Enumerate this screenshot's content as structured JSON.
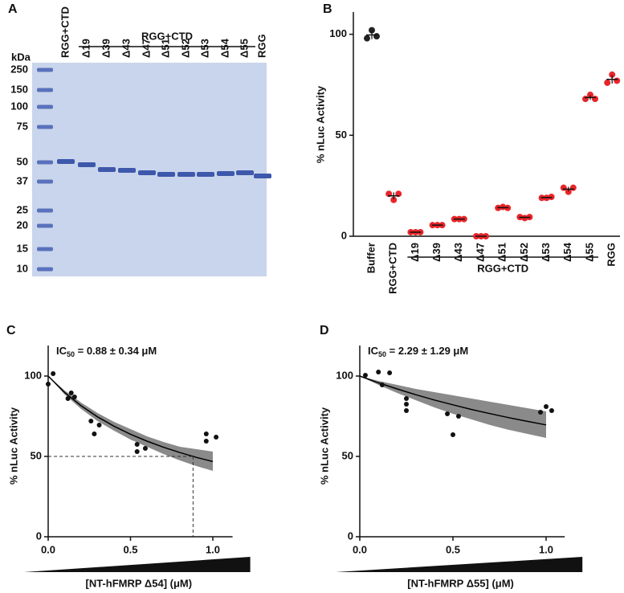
{
  "gel": {
    "panel_label": "A",
    "unit": "kDa",
    "markers": [
      250,
      150,
      100,
      75,
      50,
      37,
      25,
      20,
      15,
      10
    ],
    "lanes": [
      "RGG+CTD",
      "Δ19",
      "Δ39",
      "Δ43",
      "Δ47",
      "Δ51",
      "Δ52",
      "Δ53",
      "Δ54",
      "Δ55",
      "RGG"
    ],
    "group_label": "RGG+CTD"
  },
  "chart_data": [
    {
      "type": "strip",
      "panel_label": "B",
      "ylabel": "% nLuc Activity",
      "categories": [
        "Buffer",
        "RGG+CTD",
        "Δ19",
        "Δ39",
        "Δ43",
        "Δ47",
        "Δ51",
        "Δ52",
        "Δ53",
        "Δ54",
        "Δ55",
        "RGG"
      ],
      "values": [
        [
          98,
          102,
          99
        ],
        [
          21,
          18,
          21
        ],
        [
          2,
          2,
          2
        ],
        [
          5.5,
          5.5,
          5.5
        ],
        [
          8.5,
          8.5,
          8.5
        ],
        [
          0,
          0,
          0
        ],
        [
          14,
          14.5,
          14
        ],
        [
          9.5,
          9,
          9.5
        ],
        [
          19,
          19,
          19.5
        ],
        [
          24,
          22,
          24
        ],
        [
          68,
          70,
          68
        ],
        [
          76,
          80,
          77
        ]
      ],
      "colors": [
        "#222222",
        "#e8262a",
        "#e8262a",
        "#e8262a",
        "#e8262a",
        "#e8262a",
        "#e8262a",
        "#e8262a",
        "#e8262a",
        "#e8262a",
        "#e8262a",
        "#e8262a"
      ],
      "group_label": "RGG+CTD",
      "ylim": [
        0,
        111
      ],
      "yticks": [
        0,
        50,
        100
      ]
    },
    {
      "type": "scatter",
      "panel_label": "C",
      "annotation": {
        "prefix": "IC",
        "subscript": "50",
        "text": " = 0.88 ± 0.34 μM"
      },
      "ylabel": "% nLuc Activity",
      "xlabel": "[NT-hFMRP Δ54] (μM)",
      "xlim": [
        0,
        1.12
      ],
      "ylim": [
        0,
        119
      ],
      "xticks": [
        {
          "value": 0,
          "label": "0.0"
        },
        {
          "value": 0.5,
          "label": "0.5"
        },
        {
          "value": 1,
          "label": "1.0"
        }
      ],
      "yticks": [
        0,
        50,
        100
      ],
      "x": [
        0,
        0.03,
        0.12,
        0.14,
        0.16,
        0.26,
        0.28,
        0.31,
        0.54,
        0.54,
        0.59,
        0.96,
        0.96,
        1.02
      ],
      "y": [
        95,
        101.5,
        86,
        89.5,
        87,
        72,
        64,
        69.5,
        57.5,
        53,
        55,
        64,
        59.5,
        62
      ],
      "fit": {
        "x": [
          0,
          0.1,
          0.2,
          0.3,
          0.4,
          0.5,
          0.6,
          0.7,
          0.8,
          0.9,
          1.0
        ],
        "y": [
          100,
          89.8,
          81.5,
          74.6,
          68.8,
          63.8,
          59.5,
          55.7,
          52.4,
          49.4,
          46.8
        ],
        "upper": [
          100,
          91,
          83.5,
          77,
          71.5,
          67,
          62.5,
          59,
          56,
          54.5,
          53
        ],
        "lower": [
          100,
          88.5,
          79.5,
          72,
          66,
          60.5,
          56,
          51.5,
          47.5,
          44,
          41
        ]
      },
      "guide": {
        "x": 0.88,
        "y": 50
      },
      "band_color": "#8a8a8a",
      "line_color": "#000000"
    },
    {
      "type": "scatter",
      "panel_label": "D",
      "annotation": {
        "prefix": "IC",
        "subscript": "50",
        "text": " = 2.29 ± 1.29 μM"
      },
      "ylabel": "% nLuc Activity",
      "xlabel": "[NT-hFMRP Δ55] (μM)",
      "xlim": [
        0,
        1.1
      ],
      "ylim": [
        0,
        119
      ],
      "xticks": [
        {
          "value": 0,
          "label": "0.0"
        },
        {
          "value": 0.5,
          "label": "0.5"
        },
        {
          "value": 1,
          "label": "1.0"
        }
      ],
      "yticks": [
        0,
        50,
        100
      ],
      "x": [
        0.03,
        0.1,
        0.16,
        0.12,
        0.25,
        0.25,
        0.25,
        0.47,
        0.53,
        0.5,
        0.97,
        1.0,
        1.03
      ],
      "y": [
        100.5,
        102.5,
        102,
        94.5,
        86,
        82.5,
        78.5,
        76.5,
        75,
        63.5,
        77.5,
        81,
        78.5
      ],
      "fit": {
        "x": [
          0,
          0.1,
          0.2,
          0.3,
          0.4,
          0.5,
          0.6,
          0.7,
          0.8,
          0.9,
          1.0
        ],
        "y": [
          100,
          95.8,
          92,
          88.4,
          85.1,
          82.1,
          79.2,
          76.6,
          74.1,
          71.8,
          69.6
        ],
        "upper": [
          100,
          97,
          94.5,
          92,
          90,
          88,
          86,
          84,
          82,
          80,
          78
        ],
        "lower": [
          100,
          94.5,
          89.5,
          85,
          80.5,
          76.5,
          73,
          69.5,
          66.5,
          64,
          61.5
        ]
      },
      "band_color": "#8a8a8a",
      "line_color": "#000000"
    }
  ]
}
